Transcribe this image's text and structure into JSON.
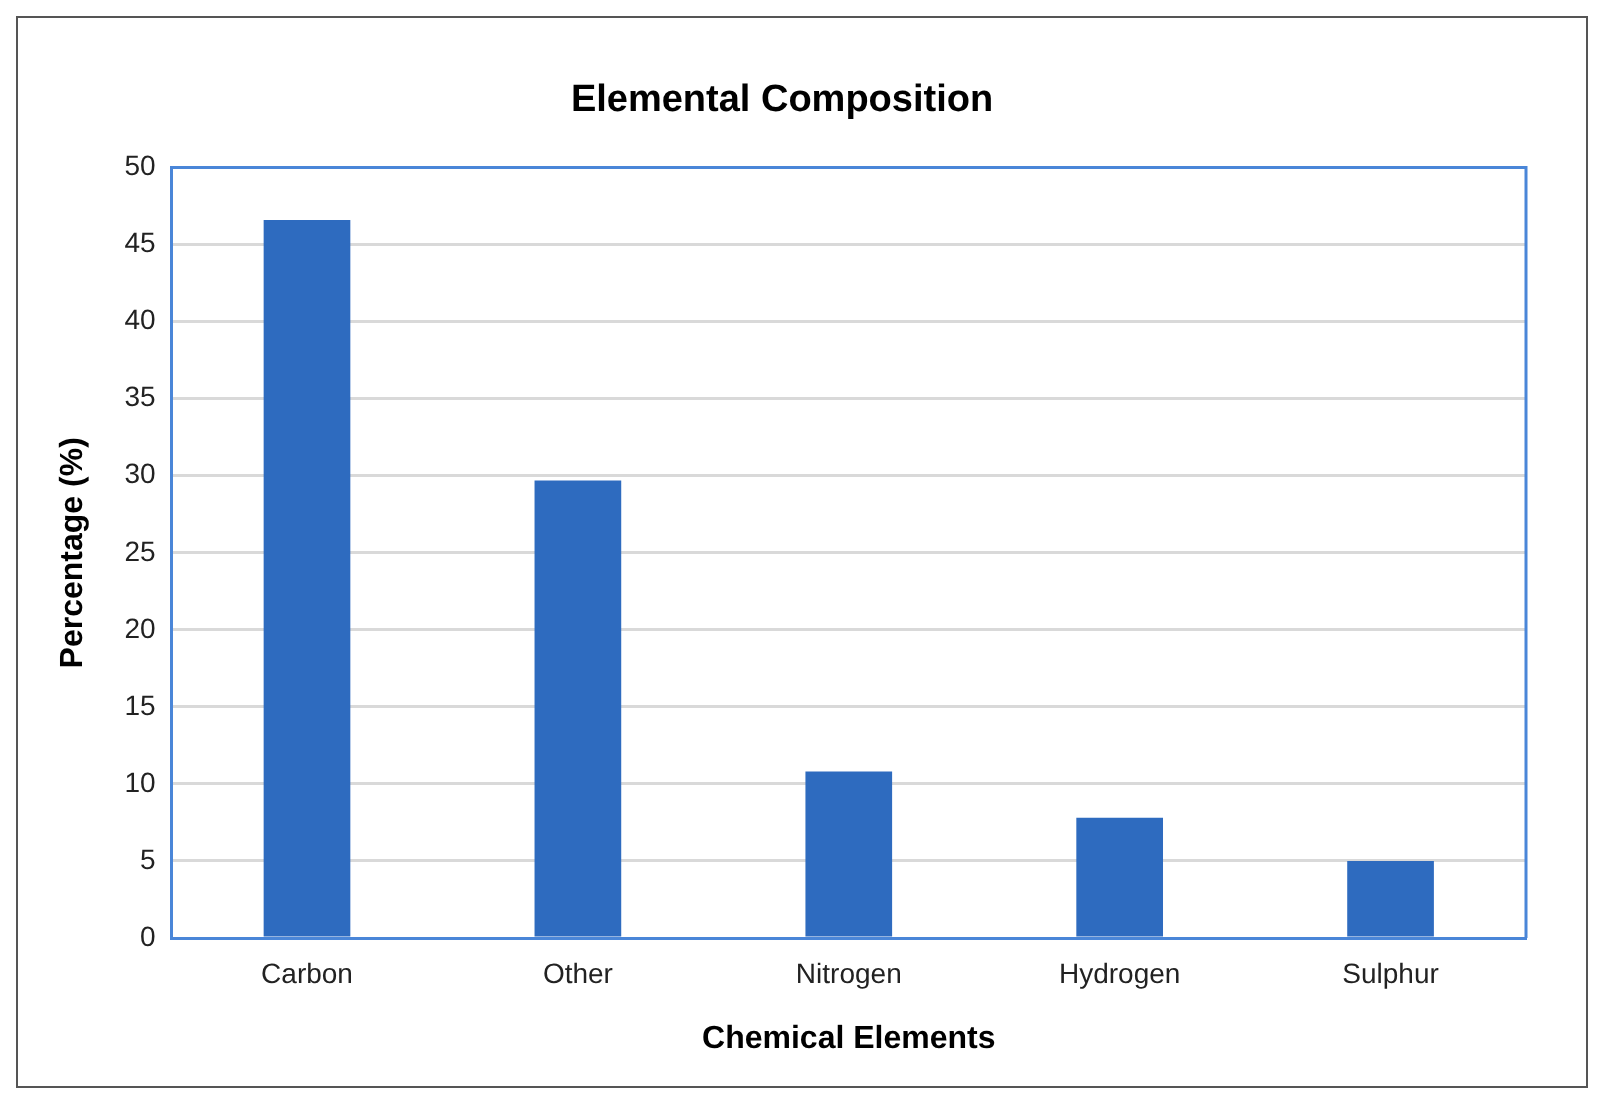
{
  "chart_data": {
    "type": "bar",
    "title": "Elemental Composition",
    "xlabel": "Chemical Elements",
    "ylabel": "Percentage (%)",
    "categories": [
      "Carbon",
      "Other",
      "Nitrogen",
      "Hydrogen",
      "Sulphur"
    ],
    "values": [
      46.6,
      29.7,
      10.8,
      7.8,
      5.0
    ],
    "color": "#2e6bbf",
    "ylim": [
      0,
      50
    ],
    "yticks": [
      0,
      5,
      10,
      15,
      20,
      25,
      30,
      35,
      40,
      45,
      50
    ],
    "grid": "y",
    "legend": false
  }
}
